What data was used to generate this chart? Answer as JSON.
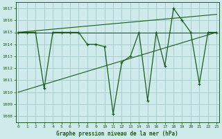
{
  "title": "Graphe pression niveau de la mer (hPa)",
  "bg_color": "#ceeaea",
  "grid_color": "#a8cccc",
  "line_color": "#1a5c1a",
  "xlim": [
    -0.3,
    23.3
  ],
  "ylim": [
    1007.5,
    1017.5
  ],
  "yticks": [
    1008,
    1009,
    1010,
    1011,
    1012,
    1013,
    1014,
    1015,
    1016,
    1017
  ],
  "xticks": [
    0,
    1,
    2,
    3,
    4,
    5,
    6,
    7,
    8,
    9,
    10,
    11,
    12,
    13,
    14,
    15,
    16,
    17,
    18,
    19,
    20,
    21,
    22,
    23
  ],
  "main_x": [
    0,
    1,
    2,
    3,
    4,
    5,
    6,
    7,
    8,
    9,
    10,
    11,
    12,
    13,
    14,
    15,
    16,
    17,
    18,
    19,
    20,
    21,
    22,
    23
  ],
  "main_y": [
    1015.0,
    1015.0,
    1015.0,
    1010.3,
    1015.0,
    1015.0,
    1015.0,
    1015.0,
    1014.0,
    1014.0,
    1013.8,
    1008.2,
    1012.5,
    1013.0,
    1015.0,
    1009.3,
    1015.0,
    1012.2,
    1017.0,
    1016.0,
    1015.0,
    1010.7,
    1015.0,
    1015.0
  ],
  "trend1_x": [
    0,
    23
  ],
  "trend1_y": [
    1015.0,
    1015.0
  ],
  "trend2_x": [
    0,
    23
  ],
  "trend2_y": [
    1015.0,
    1016.5
  ],
  "trend3_x": [
    0,
    23
  ],
  "trend3_y": [
    1010.0,
    1015.0
  ]
}
